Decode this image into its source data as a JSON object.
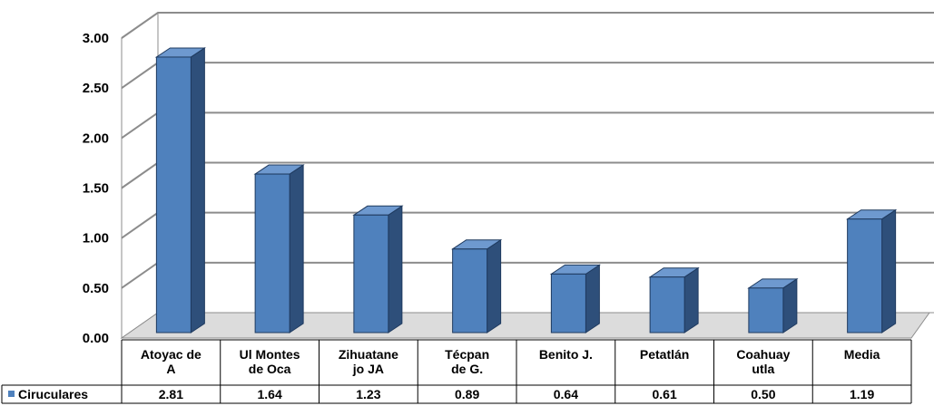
{
  "chart_data": {
    "type": "bar",
    "categories": [
      [
        "Atoyac de",
        "A"
      ],
      [
        "Ul Montes",
        "de Oca"
      ],
      [
        "Zihuatane",
        "jo JA"
      ],
      [
        "Técpan",
        "de G."
      ],
      [
        "Benito J."
      ],
      [
        "Petatlán"
      ],
      [
        "Coahuay",
        "utla"
      ],
      [
        "Media"
      ]
    ],
    "series": [
      {
        "name": "Ciruculares",
        "values": [
          2.81,
          1.64,
          1.23,
          0.89,
          0.64,
          0.61,
          0.5,
          1.19
        ],
        "value_labels": [
          "2.81",
          "1.64",
          "1.23",
          "0.89",
          "0.64",
          "0.61",
          "0.50",
          "1.19"
        ]
      }
    ],
    "y_ticks": [
      "0.00",
      "0.50",
      "1.00",
      "1.50",
      "2.00",
      "2.50",
      "3.00"
    ],
    "ylim": [
      0,
      3
    ],
    "grid": true,
    "data_table": true,
    "colors": {
      "bar_front": "#4F81BD",
      "bar_side": "#2E4F7A",
      "bar_top": "#6E99CF",
      "bar_edge": "#1F3A5F",
      "grid": "#8C8C8C",
      "legend_marker": "#4F81BD"
    }
  }
}
